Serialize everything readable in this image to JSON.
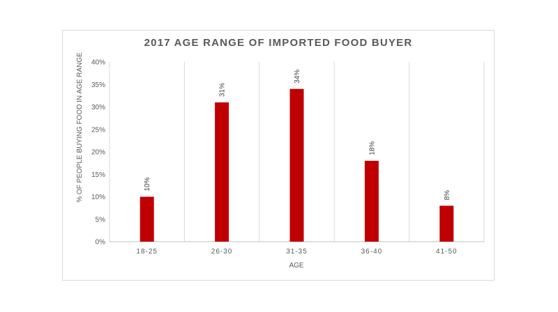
{
  "chart_data": {
    "type": "bar",
    "title": "2017 AGE RANGE OF IMPORTED FOOD BUYER",
    "xlabel": "AGE",
    "ylabel": "% OF PEOPLE BUYING FOOD IN AGE RANGE",
    "categories": [
      "18-25",
      "26-30",
      "31-35",
      "36-40",
      "41-50"
    ],
    "values": [
      10,
      31,
      34,
      18,
      8
    ],
    "data_labels": [
      "10%",
      "31%",
      "34%",
      "18%",
      "8%"
    ],
    "ylim": [
      0,
      40
    ],
    "yticks": [
      0,
      5,
      10,
      15,
      20,
      25,
      30,
      35,
      40
    ],
    "ytick_labels": [
      "0%",
      "5%",
      "10%",
      "15%",
      "20%",
      "25%",
      "30%",
      "35%",
      "40%"
    ],
    "bar_color": "#c00000",
    "grid": "vertical category separators",
    "legend": "none"
  }
}
